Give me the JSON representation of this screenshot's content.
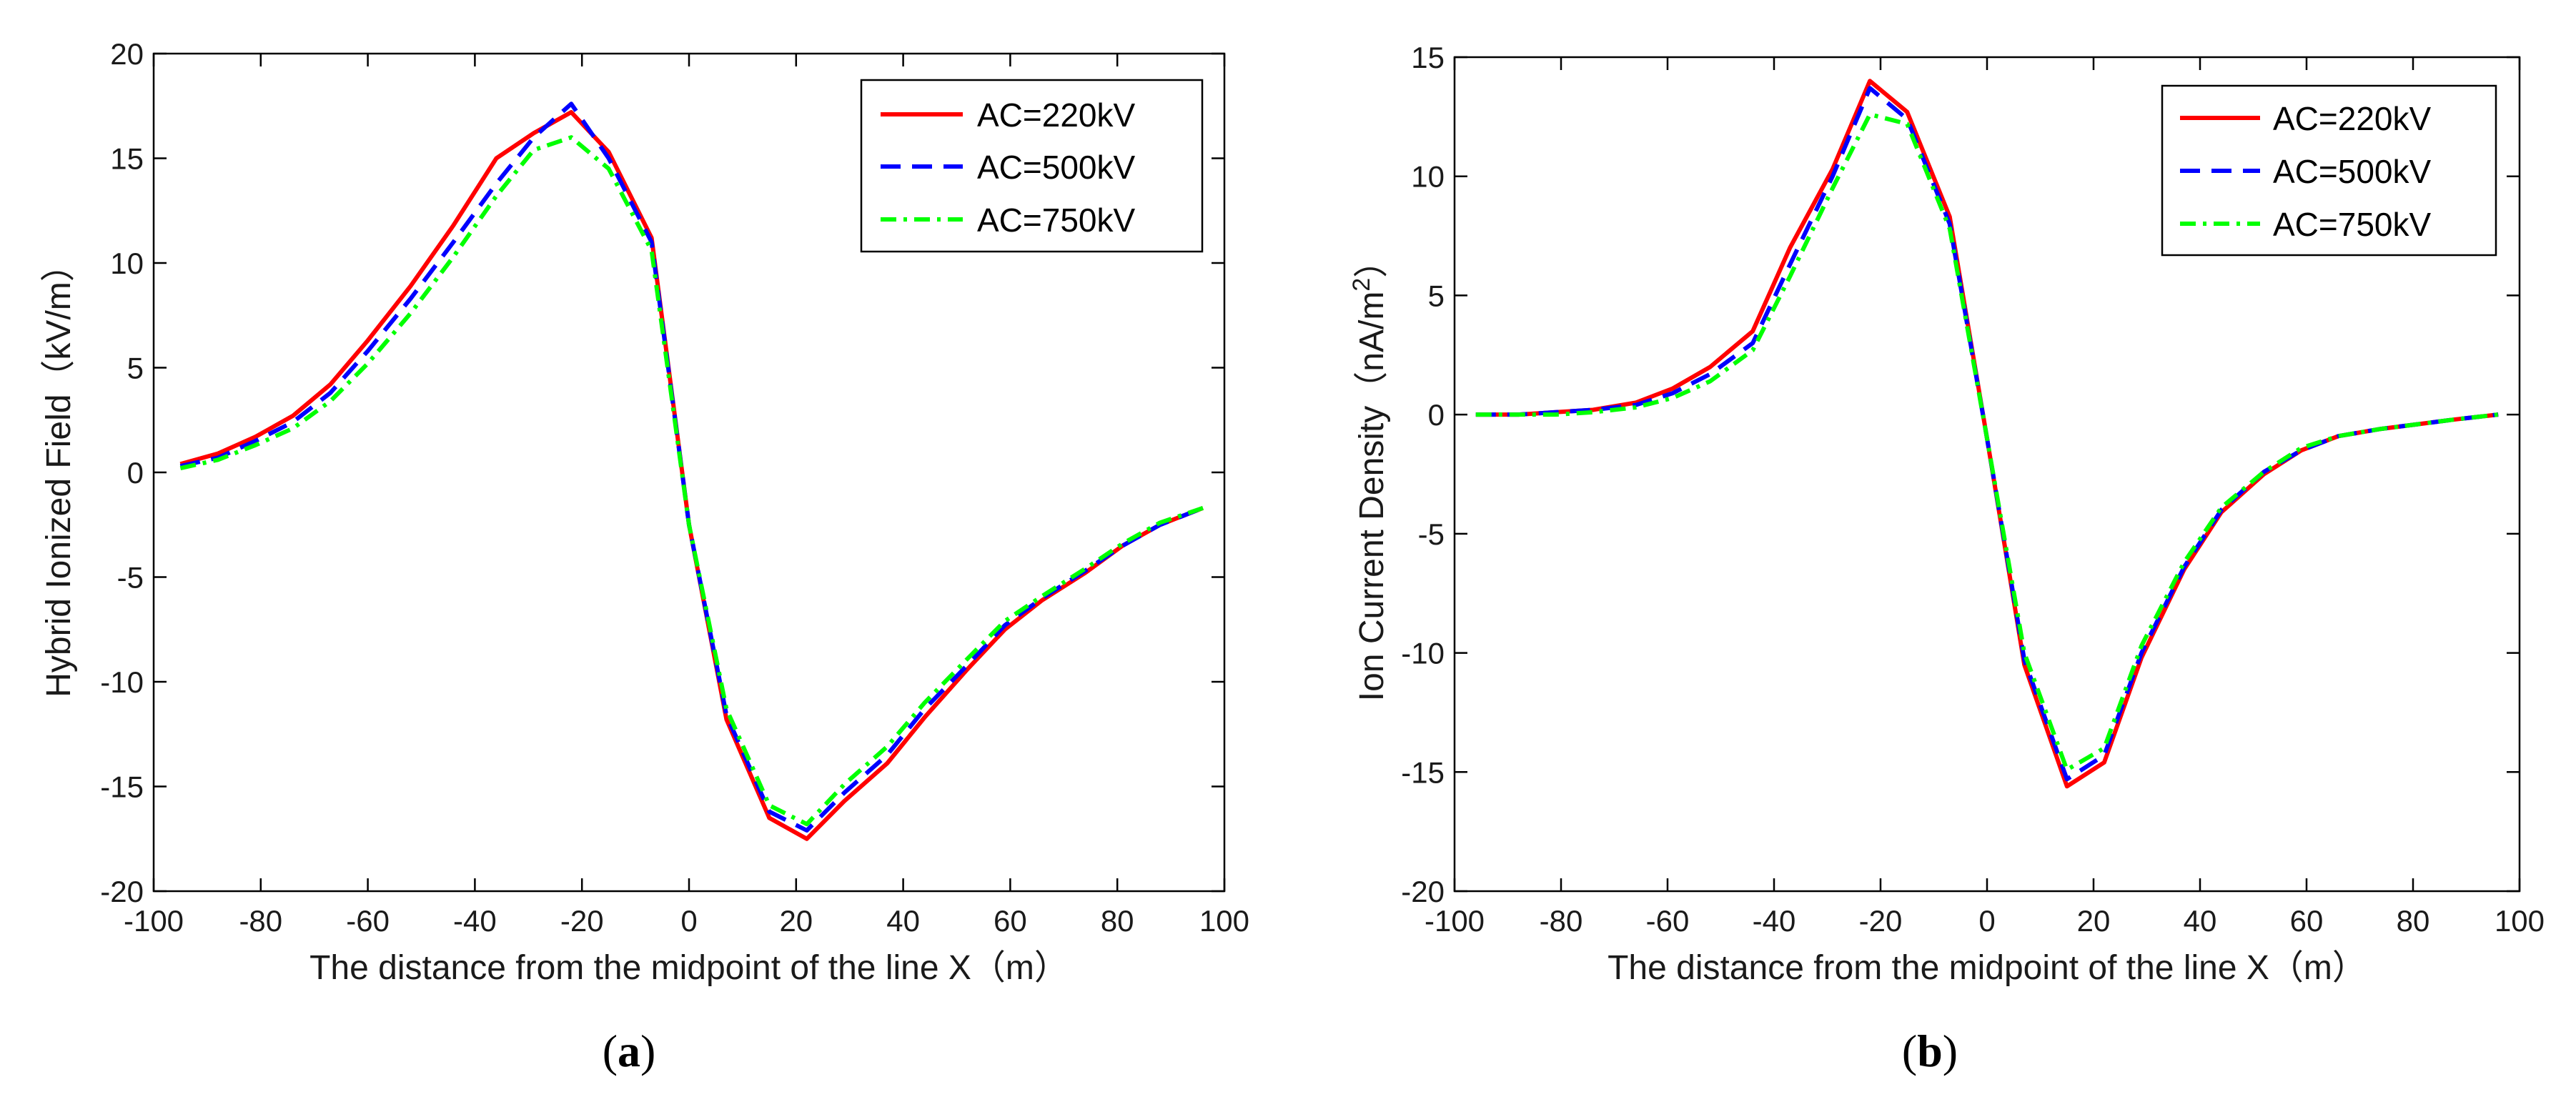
{
  "chart_data": [
    {
      "type": "line",
      "panel_label": {
        "open": "(",
        "letter": "a",
        "close": ")"
      },
      "xlabel": "The distance from the midpoint of the line X（m）",
      "ylabel": "Hybrid Ionized Field（kV/m）",
      "xlim": [
        -100,
        100
      ],
      "ylim": [
        -20,
        20
      ],
      "xticks": [
        -100,
        -80,
        -60,
        -40,
        -20,
        0,
        20,
        40,
        60,
        80,
        100
      ],
      "yticks": [
        -20,
        -15,
        -10,
        -5,
        0,
        5,
        10,
        15,
        20
      ],
      "legend_position": "top-right",
      "series": [
        {
          "name": "AC=220kV",
          "color": "#ff0000",
          "dash": "solid",
          "x": [
            -95,
            -88,
            -81,
            -74,
            -67,
            -60,
            -52,
            -44,
            -36,
            -29,
            -22,
            -15,
            -7,
            0,
            7,
            15,
            22,
            29,
            37,
            44,
            52,
            59,
            66,
            74,
            81,
            88,
            96
          ],
          "y": [
            0.4,
            0.9,
            1.7,
            2.7,
            4.2,
            6.3,
            8.9,
            11.8,
            15.0,
            16.2,
            17.2,
            15.3,
            11.2,
            -2.5,
            -11.8,
            -16.5,
            -17.5,
            -15.7,
            -13.9,
            -11.7,
            -9.4,
            -7.5,
            -6.1,
            -4.8,
            -3.5,
            -2.5,
            -1.7
          ]
        },
        {
          "name": "AC=500kV",
          "color": "#0000ff",
          "dash": "dashed",
          "x": [
            -95,
            -88,
            -81,
            -74,
            -67,
            -60,
            -52,
            -44,
            -36,
            -29,
            -22,
            -15,
            -7,
            0,
            7,
            15,
            22,
            29,
            37,
            44,
            52,
            59,
            66,
            74,
            81,
            88,
            96
          ],
          "y": [
            0.3,
            0.7,
            1.5,
            2.4,
            3.8,
            5.8,
            8.3,
            11.0,
            13.8,
            16.0,
            17.6,
            15.0,
            11.0,
            -2.5,
            -11.6,
            -16.2,
            -17.1,
            -15.3,
            -13.5,
            -11.3,
            -9.2,
            -7.3,
            -6.0,
            -4.7,
            -3.5,
            -2.5,
            -1.7
          ]
        },
        {
          "name": "AC=750kV",
          "color": "#00ff00",
          "dash": "dashdot",
          "x": [
            -95,
            -88,
            -81,
            -74,
            -67,
            -60,
            -52,
            -44,
            -36,
            -29,
            -22,
            -15,
            -7,
            0,
            7,
            15,
            22,
            29,
            37,
            44,
            52,
            59,
            66,
            74,
            81,
            88,
            96
          ],
          "y": [
            0.2,
            0.6,
            1.3,
            2.1,
            3.4,
            5.2,
            7.6,
            10.3,
            13.2,
            15.4,
            16.0,
            14.5,
            10.6,
            -2.5,
            -11.3,
            -15.9,
            -16.8,
            -14.9,
            -13.1,
            -11.0,
            -8.9,
            -7.1,
            -5.9,
            -4.6,
            -3.4,
            -2.4,
            -1.7
          ]
        }
      ]
    },
    {
      "type": "line",
      "panel_label": {
        "open": "(",
        "letter": "b",
        "close": ")"
      },
      "xlabel": "The distance from the midpoint of the line X（m）",
      "ylabel": "Ion Current Density（nA/m",
      "ylabel_sup": "2",
      "ylabel_end": "）",
      "xlim": [
        -100,
        100
      ],
      "ylim": [
        -20,
        15
      ],
      "xticks": [
        -100,
        -80,
        -60,
        -40,
        -20,
        0,
        20,
        40,
        60,
        80,
        100
      ],
      "yticks": [
        -20,
        -15,
        -10,
        -5,
        0,
        5,
        10,
        15
      ],
      "legend_position": "top-right",
      "series": [
        {
          "name": "AC=220kV",
          "color": "#ff0000",
          "dash": "solid",
          "x": [
            -96,
            -88,
            -81,
            -74,
            -66,
            -59,
            -52,
            -44,
            -37,
            -29,
            -22,
            -15,
            -7,
            0,
            7,
            15,
            22,
            29,
            37,
            44,
            52,
            59,
            66,
            74,
            81,
            88,
            96
          ],
          "y": [
            0.0,
            0.0,
            0.1,
            0.2,
            0.5,
            1.1,
            2.0,
            3.5,
            7.0,
            10.3,
            14.0,
            12.7,
            8.3,
            -1.0,
            -10.5,
            -15.6,
            -14.6,
            -10.2,
            -6.5,
            -4.1,
            -2.5,
            -1.5,
            -0.9,
            -0.6,
            -0.4,
            -0.2,
            0.0
          ]
        },
        {
          "name": "AC=500kV",
          "color": "#0000ff",
          "dash": "dashed",
          "x": [
            -96,
            -88,
            -81,
            -74,
            -66,
            -59,
            -52,
            -44,
            -37,
            -29,
            -22,
            -15,
            -7,
            0,
            7,
            15,
            22,
            29,
            37,
            44,
            52,
            59,
            66,
            74,
            81,
            88,
            96
          ],
          "y": [
            0.0,
            0.0,
            0.1,
            0.2,
            0.4,
            0.9,
            1.7,
            3.0,
            6.3,
            10.0,
            13.7,
            12.4,
            8.0,
            -1.0,
            -10.3,
            -15.3,
            -14.3,
            -10.0,
            -6.4,
            -4.0,
            -2.4,
            -1.5,
            -0.9,
            -0.6,
            -0.4,
            -0.2,
            0.0
          ]
        },
        {
          "name": "AC=750kV",
          "color": "#00ff00",
          "dash": "dashdot",
          "x": [
            -96,
            -88,
            -81,
            -74,
            -66,
            -59,
            -52,
            -44,
            -37,
            -29,
            -22,
            -15,
            -7,
            0,
            7,
            15,
            22,
            29,
            37,
            44,
            52,
            59,
            66,
            74,
            81,
            88,
            96
          ],
          "y": [
            0.0,
            0.0,
            0.0,
            0.1,
            0.3,
            0.7,
            1.4,
            2.7,
            5.8,
            9.5,
            12.6,
            12.2,
            7.8,
            -1.0,
            -10.0,
            -14.9,
            -14.0,
            -9.7,
            -6.2,
            -3.9,
            -2.4,
            -1.4,
            -0.9,
            -0.6,
            -0.4,
            -0.2,
            0.0
          ]
        }
      ]
    }
  ]
}
